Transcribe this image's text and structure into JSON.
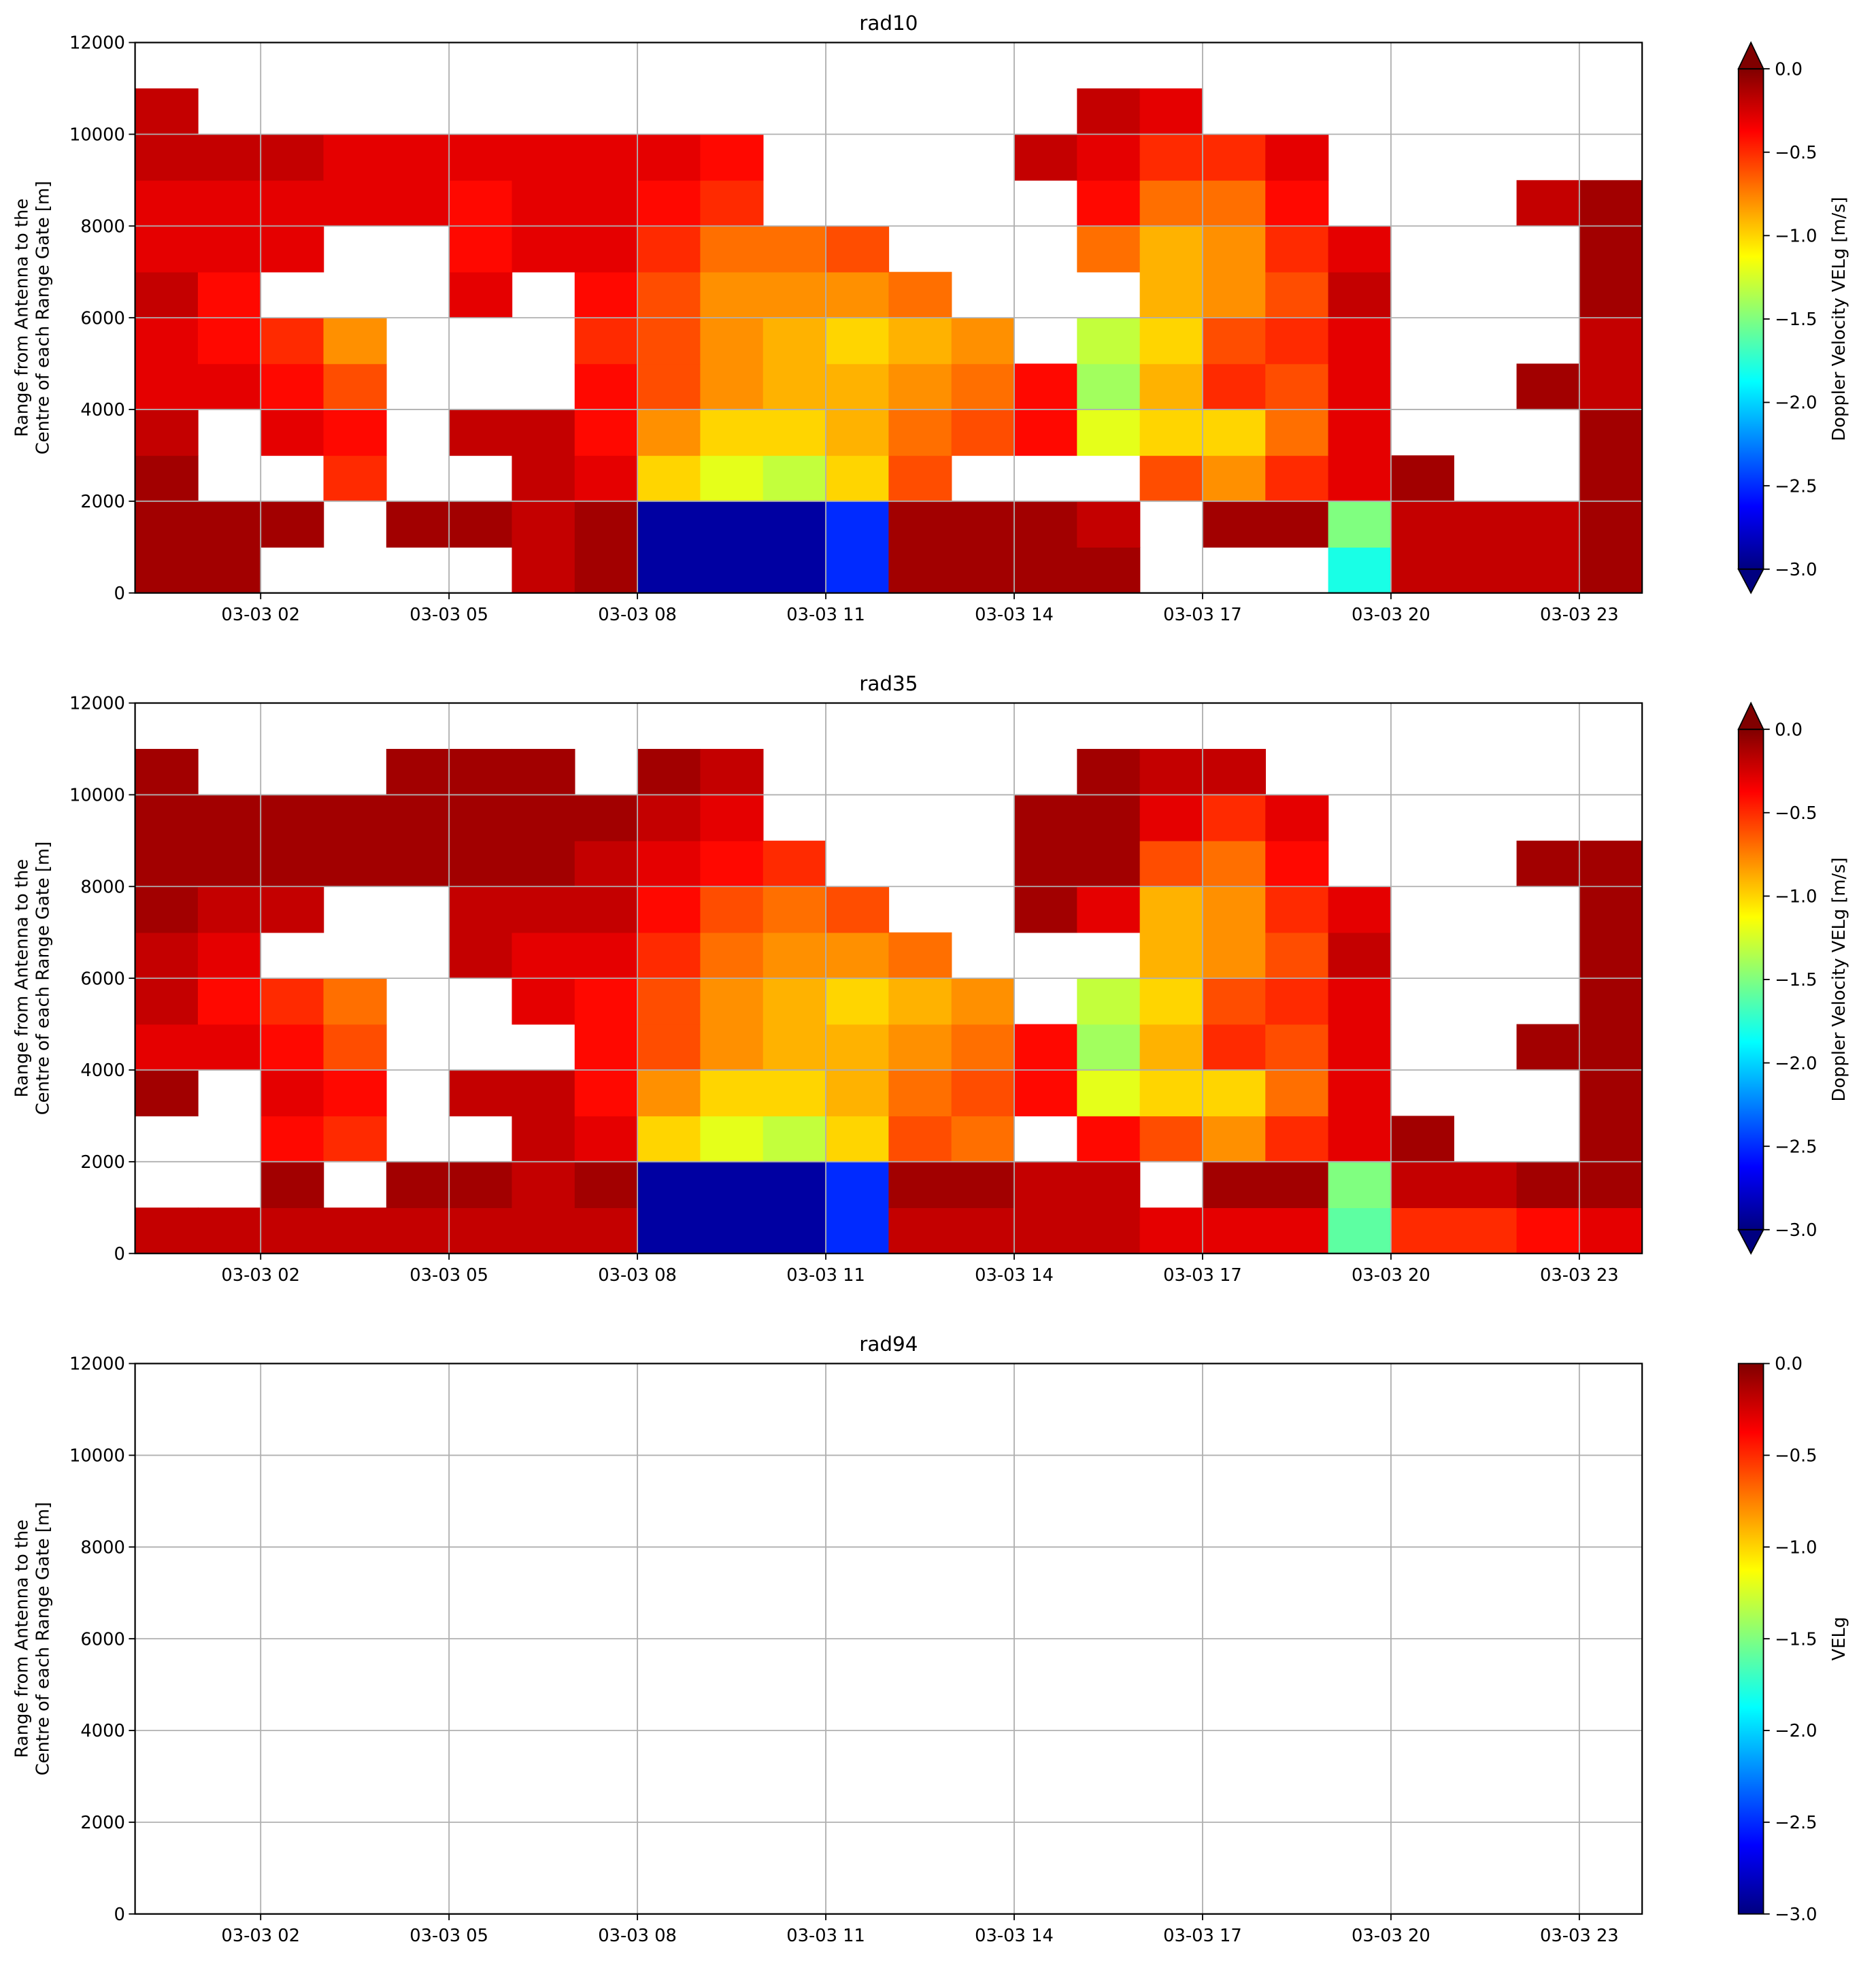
{
  "chart_data": [
    {
      "type": "heatmap",
      "title": "rad10",
      "cmap": "jet",
      "ylabel": [
        "Range from Antenna to the",
        "Centre of each Range Gate [m]"
      ],
      "xlim": [
        0,
        24
      ],
      "ylim": [
        0,
        12000
      ],
      "xticks": [
        {
          "value": 2,
          "label": "03-03 02"
        },
        {
          "value": 5,
          "label": "03-03 05"
        },
        {
          "value": 8,
          "label": "03-03 08"
        },
        {
          "value": 11,
          "label": "03-03 11"
        },
        {
          "value": 14,
          "label": "03-03 14"
        },
        {
          "value": 17,
          "label": "03-03 17"
        },
        {
          "value": 20,
          "label": "03-03 20"
        },
        {
          "value": 23,
          "label": "03-03 23"
        }
      ],
      "yticks": [
        0,
        2000,
        4000,
        6000,
        8000,
        10000,
        12000
      ],
      "grid": true,
      "colorbar": {
        "label": "Doppler Velocity VELg [m/s]",
        "lim": [
          -3,
          0
        ],
        "extend": true,
        "ticks": [
          {
            "value": 0,
            "label": "0.0"
          },
          {
            "value": -0.5,
            "label": "−0.5"
          },
          {
            "value": -1,
            "label": "−1.0"
          },
          {
            "value": -1.5,
            "label": "−1.5"
          },
          {
            "value": -2,
            "label": "−2.0"
          },
          {
            "value": -2.5,
            "label": "−2.5"
          },
          {
            "value": -3,
            "label": "−3.0"
          }
        ]
      },
      "z": [
        [
          -0.1,
          -0.1,
          null,
          null,
          null,
          null,
          -0.2,
          -0.1,
          -2.9,
          -2.9,
          -2.9,
          -2.5,
          -0.1,
          -0.1,
          -0.1,
          -0.1,
          null,
          null,
          null,
          -1.8,
          -0.2,
          -0.2,
          -0.2,
          -0.1
        ],
        [
          -0.1,
          -0.1,
          -0.1,
          null,
          -0.1,
          -0.1,
          -0.2,
          -0.1,
          -2.9,
          -2.9,
          -2.9,
          -2.5,
          -0.1,
          -0.1,
          -0.1,
          -0.2,
          null,
          -0.1,
          -0.1,
          -1.5,
          -0.2,
          -0.2,
          -0.2,
          -0.1
        ],
        [
          -0.1,
          null,
          null,
          -0.5,
          null,
          null,
          -0.2,
          -0.3,
          -1.0,
          -1.2,
          -1.3,
          -1.0,
          -0.6,
          null,
          null,
          null,
          -0.6,
          -0.8,
          -0.5,
          -0.3,
          -0.1,
          null,
          null,
          -0.1
        ],
        [
          -0.2,
          null,
          -0.3,
          -0.4,
          null,
          -0.2,
          -0.2,
          -0.4,
          -0.8,
          -1.0,
          -1.0,
          -0.9,
          -0.7,
          -0.6,
          -0.4,
          -1.2,
          -1.0,
          -1.0,
          -0.7,
          -0.3,
          null,
          null,
          null,
          -0.1
        ],
        [
          -0.3,
          -0.3,
          -0.4,
          -0.6,
          null,
          null,
          null,
          -0.4,
          -0.6,
          -0.8,
          -0.9,
          -0.9,
          -0.8,
          -0.7,
          -0.4,
          -1.4,
          -0.9,
          -0.5,
          -0.6,
          -0.3,
          null,
          null,
          -0.1,
          -0.2
        ],
        [
          -0.3,
          -0.4,
          -0.5,
          -0.8,
          null,
          null,
          null,
          -0.5,
          -0.6,
          -0.8,
          -0.9,
          -1.0,
          -0.9,
          -0.8,
          null,
          -1.3,
          -1.0,
          -0.6,
          -0.5,
          -0.3,
          null,
          null,
          null,
          -0.2
        ],
        [
          -0.2,
          -0.4,
          null,
          null,
          null,
          -0.3,
          null,
          -0.4,
          -0.6,
          -0.8,
          -0.8,
          -0.8,
          -0.7,
          null,
          null,
          null,
          -0.9,
          -0.8,
          -0.6,
          -0.2,
          null,
          null,
          null,
          -0.1
        ],
        [
          -0.3,
          -0.3,
          -0.3,
          null,
          null,
          -0.4,
          -0.3,
          -0.3,
          -0.5,
          -0.7,
          -0.7,
          -0.6,
          null,
          null,
          null,
          -0.7,
          -0.9,
          -0.8,
          -0.5,
          -0.3,
          null,
          null,
          null,
          -0.1
        ],
        [
          -0.3,
          -0.3,
          -0.3,
          -0.3,
          -0.3,
          -0.4,
          -0.3,
          -0.3,
          -0.4,
          -0.5,
          null,
          null,
          null,
          null,
          null,
          -0.4,
          -0.7,
          -0.7,
          -0.4,
          null,
          null,
          null,
          -0.2,
          -0.1
        ],
        [
          -0.2,
          -0.2,
          -0.2,
          -0.3,
          -0.3,
          -0.3,
          -0.3,
          -0.3,
          -0.3,
          -0.4,
          null,
          null,
          null,
          null,
          -0.2,
          -0.3,
          -0.5,
          -0.5,
          -0.3,
          null,
          null,
          null,
          null,
          null
        ],
        [
          -0.2,
          null,
          null,
          null,
          null,
          null,
          null,
          null,
          null,
          null,
          null,
          null,
          null,
          null,
          null,
          -0.2,
          -0.3,
          null,
          null,
          null,
          null,
          null,
          null,
          null
        ],
        [
          null,
          null,
          null,
          null,
          null,
          null,
          null,
          null,
          null,
          null,
          null,
          null,
          null,
          null,
          null,
          null,
          null,
          null,
          null,
          null,
          null,
          null,
          null,
          null
        ]
      ]
    },
    {
      "type": "heatmap",
      "title": "rad35",
      "cmap": "jet",
      "ylabel": [
        "Range from Antenna to the",
        "Centre of each Range Gate [m]"
      ],
      "xlim": [
        0,
        24
      ],
      "ylim": [
        0,
        12000
      ],
      "xticks": [
        {
          "value": 2,
          "label": "03-03 02"
        },
        {
          "value": 5,
          "label": "03-03 05"
        },
        {
          "value": 8,
          "label": "03-03 08"
        },
        {
          "value": 11,
          "label": "03-03 11"
        },
        {
          "value": 14,
          "label": "03-03 14"
        },
        {
          "value": 17,
          "label": "03-03 17"
        },
        {
          "value": 20,
          "label": "03-03 20"
        },
        {
          "value": 23,
          "label": "03-03 23"
        }
      ],
      "yticks": [
        0,
        2000,
        4000,
        6000,
        8000,
        10000,
        12000
      ],
      "grid": true,
      "colorbar": {
        "label": "Doppler Velocity VELg [m/s]",
        "lim": [
          -3,
          0
        ],
        "extend": true,
        "ticks": [
          {
            "value": 0,
            "label": "0.0"
          },
          {
            "value": -0.5,
            "label": "−0.5"
          },
          {
            "value": -1,
            "label": "−1.0"
          },
          {
            "value": -1.5,
            "label": "−1.5"
          },
          {
            "value": -2,
            "label": "−2.0"
          },
          {
            "value": -2.5,
            "label": "−2.5"
          },
          {
            "value": -3,
            "label": "−3.0"
          }
        ]
      },
      "z": [
        [
          -0.2,
          -0.2,
          -0.2,
          -0.2,
          -0.2,
          -0.2,
          -0.2,
          -0.2,
          -2.9,
          -2.9,
          -2.9,
          -2.5,
          -0.2,
          -0.2,
          -0.2,
          -0.2,
          -0.3,
          -0.3,
          -0.3,
          -1.6,
          -0.5,
          -0.5,
          -0.4,
          -0.3
        ],
        [
          null,
          null,
          -0.1,
          null,
          -0.1,
          -0.1,
          -0.2,
          -0.1,
          -2.9,
          -2.9,
          -2.9,
          -2.5,
          -0.1,
          -0.1,
          -0.2,
          -0.2,
          null,
          -0.1,
          -0.1,
          -1.5,
          -0.2,
          -0.2,
          -0.1,
          -0.1
        ],
        [
          null,
          null,
          -0.4,
          -0.5,
          null,
          null,
          -0.2,
          -0.3,
          -1.0,
          -1.2,
          -1.3,
          -1.0,
          -0.6,
          -0.7,
          null,
          -0.4,
          -0.6,
          -0.8,
          -0.5,
          -0.3,
          -0.1,
          null,
          null,
          -0.1
        ],
        [
          -0.1,
          null,
          -0.3,
          -0.4,
          null,
          -0.2,
          -0.2,
          -0.4,
          -0.8,
          -1.0,
          -1.0,
          -0.9,
          -0.7,
          -0.6,
          -0.4,
          -1.2,
          -1.0,
          -1.0,
          -0.7,
          -0.3,
          null,
          null,
          null,
          -0.1
        ],
        [
          -0.3,
          -0.3,
          -0.4,
          -0.6,
          null,
          null,
          null,
          -0.4,
          -0.6,
          -0.8,
          -0.9,
          -0.9,
          -0.8,
          -0.7,
          -0.4,
          -1.4,
          -0.9,
          -0.5,
          -0.6,
          -0.3,
          null,
          null,
          -0.1,
          -0.1
        ],
        [
          -0.2,
          -0.4,
          -0.5,
          -0.7,
          null,
          null,
          -0.3,
          -0.4,
          -0.6,
          -0.8,
          -0.9,
          -1.0,
          -0.9,
          -0.8,
          null,
          -1.3,
          -1.0,
          -0.6,
          -0.5,
          -0.3,
          null,
          null,
          null,
          -0.1
        ],
        [
          -0.2,
          -0.3,
          null,
          null,
          null,
          -0.2,
          -0.3,
          -0.3,
          -0.5,
          -0.7,
          -0.8,
          -0.8,
          -0.7,
          null,
          null,
          null,
          -0.9,
          -0.8,
          -0.6,
          -0.2,
          null,
          null,
          null,
          -0.1
        ],
        [
          -0.1,
          -0.2,
          -0.2,
          null,
          null,
          -0.2,
          -0.2,
          -0.2,
          -0.4,
          -0.6,
          -0.7,
          -0.6,
          null,
          null,
          -0.1,
          -0.3,
          -0.9,
          -0.8,
          -0.5,
          -0.3,
          null,
          null,
          null,
          -0.1
        ],
        [
          -0.1,
          -0.1,
          -0.1,
          -0.1,
          -0.1,
          -0.1,
          -0.1,
          -0.2,
          -0.3,
          -0.4,
          -0.5,
          null,
          null,
          null,
          -0.1,
          -0.1,
          -0.6,
          -0.7,
          -0.4,
          null,
          null,
          null,
          -0.1,
          -0.1
        ],
        [
          -0.1,
          -0.1,
          -0.1,
          -0.1,
          -0.1,
          -0.1,
          -0.1,
          -0.1,
          -0.2,
          -0.3,
          null,
          null,
          null,
          null,
          -0.1,
          -0.1,
          -0.3,
          -0.5,
          -0.3,
          null,
          null,
          null,
          null,
          null
        ],
        [
          -0.1,
          null,
          null,
          null,
          -0.1,
          -0.1,
          -0.1,
          null,
          -0.1,
          -0.2,
          null,
          null,
          null,
          null,
          null,
          -0.1,
          -0.2,
          -0.2,
          null,
          null,
          null,
          null,
          null,
          null
        ],
        [
          null,
          null,
          null,
          null,
          null,
          null,
          null,
          null,
          null,
          null,
          null,
          null,
          null,
          null,
          null,
          null,
          null,
          null,
          null,
          null,
          null,
          null,
          null,
          null
        ]
      ]
    },
    {
      "type": "heatmap",
      "title": "rad94",
      "cmap": "jet",
      "ylabel": [
        "Range from Antenna to the",
        "Centre of each Range Gate [m]"
      ],
      "xlim": [
        0,
        24
      ],
      "ylim": [
        0,
        12000
      ],
      "xticks": [
        {
          "value": 2,
          "label": "03-03 02"
        },
        {
          "value": 5,
          "label": "03-03 05"
        },
        {
          "value": 8,
          "label": "03-03 08"
        },
        {
          "value": 11,
          "label": "03-03 11"
        },
        {
          "value": 14,
          "label": "03-03 14"
        },
        {
          "value": 17,
          "label": "03-03 17"
        },
        {
          "value": 20,
          "label": "03-03 20"
        },
        {
          "value": 23,
          "label": "03-03 23"
        }
      ],
      "yticks": [
        0,
        2000,
        4000,
        6000,
        8000,
        10000,
        12000
      ],
      "grid": true,
      "colorbar": {
        "label": "VELg",
        "lim": [
          -3,
          0
        ],
        "extend": false,
        "ticks": [
          {
            "value": 0,
            "label": "0.0"
          },
          {
            "value": -0.5,
            "label": "−0.5"
          },
          {
            "value": -1,
            "label": "−1.0"
          },
          {
            "value": -1.5,
            "label": "−1.5"
          },
          {
            "value": -2,
            "label": "−2.0"
          },
          {
            "value": -2.5,
            "label": "−2.5"
          },
          {
            "value": -3,
            "label": "−3.0"
          }
        ]
      }
    }
  ]
}
